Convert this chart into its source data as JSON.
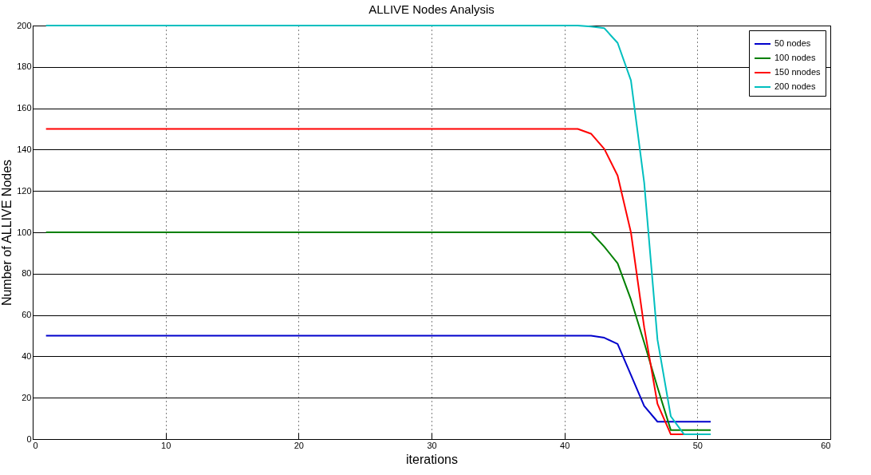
{
  "chart_data": {
    "type": "line",
    "title": "ALLIVE Nodes Analysis",
    "xlabel": "iterations",
    "ylabel": "Number of ALLIVE Nodes",
    "xlim": [
      0,
      60
    ],
    "xticks": [
      0,
      10,
      20,
      30,
      40,
      50,
      60
    ],
    "ylim": [
      0,
      200
    ],
    "yticks": [
      0,
      20,
      40,
      60,
      80,
      100,
      120,
      140,
      160,
      180,
      200
    ],
    "grid": true,
    "legend": "top right",
    "line_style": "solid",
    "series": [
      {
        "name": "50 nodes",
        "color": "#0000cc",
        "x": [
          1,
          42,
          43,
          44,
          45,
          46,
          47,
          48,
          49,
          50,
          51
        ],
        "values": [
          50,
          50,
          49,
          46,
          31,
          16,
          8.4,
          8.4,
          8.4,
          8.4,
          8.4
        ]
      },
      {
        "name": "100 nodes",
        "color": "#008000",
        "x": [
          1,
          42,
          43,
          44,
          45,
          46,
          47,
          48,
          49,
          50,
          51
        ],
        "values": [
          100,
          100,
          93,
          85,
          67.5,
          46.6,
          25,
          4.3,
          4.3,
          4.3,
          4.3
        ]
      },
      {
        "name": "150 nnodes",
        "color": "#ff0000",
        "x": [
          1,
          41,
          42,
          43,
          44,
          45,
          46,
          47,
          48,
          49
        ],
        "values": [
          150,
          150,
          147.7,
          140.3,
          127.4,
          100,
          54,
          17,
          2.3,
          2.3
        ]
      },
      {
        "name": "200 nodes",
        "color": "#00bfbf",
        "x": [
          1,
          41,
          42,
          43,
          44,
          45,
          46,
          47,
          48,
          49,
          50,
          51
        ],
        "values": [
          200,
          200,
          199.5,
          198.7,
          191.6,
          173.5,
          124,
          48,
          11,
          2.3,
          2.3,
          2.3
        ]
      }
    ]
  }
}
